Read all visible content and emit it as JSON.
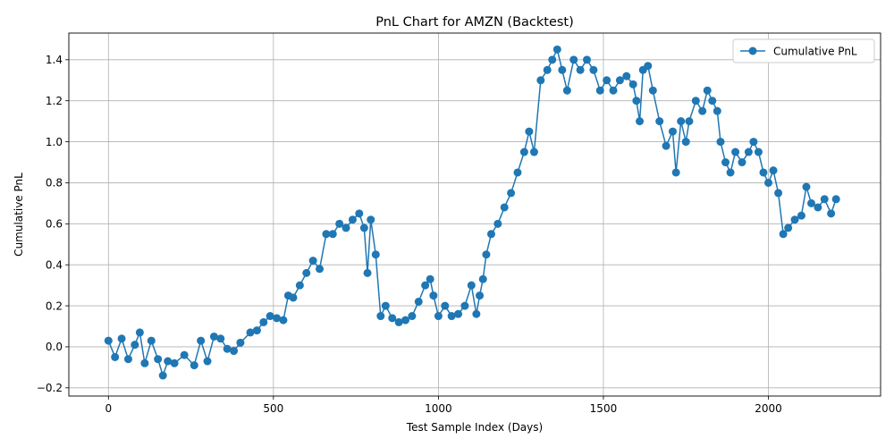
{
  "chart_data": {
    "type": "line",
    "title": "PnL Chart for AMZN (Backtest)",
    "xlabel": "Test Sample Index (Days)",
    "ylabel": "Cumulative PnL",
    "xlim": [
      -120,
      2340
    ],
    "ylim": [
      -0.24,
      1.53
    ],
    "xticks": [
      0,
      500,
      1000,
      1500,
      2000
    ],
    "yticks": [
      -0.2,
      0.0,
      0.2,
      0.4,
      0.6,
      0.8,
      1.0,
      1.2,
      1.4
    ],
    "xtick_labels": [
      "0",
      "500",
      "1000",
      "1500",
      "2000"
    ],
    "ytick_labels": [
      "−0.2",
      "0.0",
      "0.2",
      "0.4",
      "0.6",
      "0.8",
      "1.0",
      "1.2",
      "1.4"
    ],
    "grid": true,
    "legend_position": "top-right",
    "series": [
      {
        "name": "Cumulative PnL",
        "color": "#1f77b4",
        "marker": "circle",
        "x": [
          0,
          20,
          40,
          60,
          80,
          95,
          110,
          130,
          150,
          165,
          180,
          200,
          230,
          260,
          280,
          300,
          320,
          340,
          360,
          380,
          400,
          430,
          450,
          470,
          490,
          510,
          530,
          545,
          560,
          580,
          600,
          620,
          640,
          660,
          680,
          700,
          720,
          740,
          760,
          775,
          785,
          795,
          810,
          825,
          840,
          860,
          880,
          900,
          920,
          940,
          960,
          975,
          985,
          1000,
          1020,
          1040,
          1060,
          1080,
          1100,
          1115,
          1125,
          1135,
          1145,
          1160,
          1180,
          1200,
          1220,
          1240,
          1260,
          1275,
          1290,
          1310,
          1330,
          1345,
          1360,
          1375,
          1390,
          1410,
          1430,
          1450,
          1470,
          1490,
          1510,
          1530,
          1550,
          1570,
          1590,
          1600,
          1610,
          1620,
          1635,
          1650,
          1670,
          1690,
          1710,
          1720,
          1735,
          1750,
          1760,
          1780,
          1800,
          1815,
          1830,
          1845,
          1855,
          1870,
          1885,
          1900,
          1920,
          1940,
          1955,
          1970,
          1985,
          2000,
          2015,
          2030,
          2045,
          2060,
          2080,
          2100,
          2115,
          2130,
          2150,
          2170,
          2190,
          2205
        ],
        "values": [
          0.03,
          -0.05,
          0.04,
          -0.06,
          0.01,
          0.07,
          -0.08,
          0.03,
          -0.06,
          -0.14,
          -0.07,
          -0.08,
          -0.04,
          -0.09,
          0.03,
          -0.07,
          0.05,
          0.04,
          -0.01,
          -0.02,
          0.02,
          0.07,
          0.08,
          0.12,
          0.15,
          0.14,
          0.13,
          0.25,
          0.24,
          0.3,
          0.36,
          0.42,
          0.38,
          0.55,
          0.55,
          0.6,
          0.58,
          0.62,
          0.65,
          0.58,
          0.36,
          0.62,
          0.45,
          0.15,
          0.2,
          0.14,
          0.12,
          0.13,
          0.15,
          0.22,
          0.3,
          0.33,
          0.25,
          0.15,
          0.2,
          0.15,
          0.16,
          0.2,
          0.3,
          0.16,
          0.25,
          0.33,
          0.45,
          0.55,
          0.6,
          0.68,
          0.75,
          0.85,
          0.95,
          1.05,
          0.95,
          1.3,
          1.35,
          1.4,
          1.45,
          1.35,
          1.25,
          1.4,
          1.35,
          1.4,
          1.35,
          1.25,
          1.3,
          1.25,
          1.3,
          1.32,
          1.28,
          1.2,
          1.1,
          1.35,
          1.37,
          1.25,
          1.1,
          0.98,
          1.05,
          0.85,
          1.1,
          1.0,
          1.1,
          1.2,
          1.15,
          1.25,
          1.2,
          1.15,
          1.0,
          0.9,
          0.85,
          0.95,
          0.9,
          0.95,
          1.0,
          0.95,
          0.85,
          0.8,
          0.86,
          0.75,
          0.55,
          0.58,
          0.62,
          0.64,
          0.78,
          0.7,
          0.68,
          0.72,
          0.65,
          0.72
        ]
      }
    ]
  }
}
